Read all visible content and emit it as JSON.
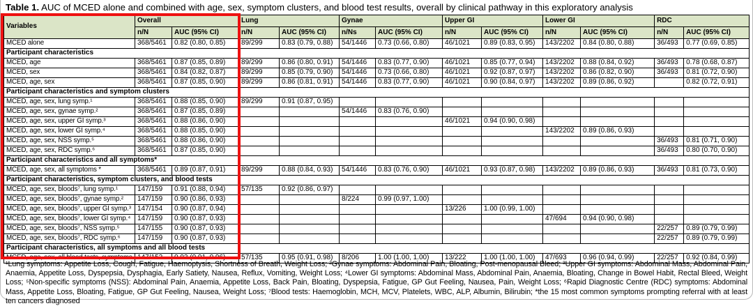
{
  "page": {
    "title_label": "Table 1.",
    "title_text": " AUC of MCED alone and combined with age, sex, symptom clusters, and blood test results, overall by clinical pathway in this exploratory analysis",
    "footnote": "¹Lung symptoms: Appetite Loss, Cough, Fatigue, Haemoptysis, Shortness of Breath, Weight Loss;   ²Gynae symptoms: Abdominal Pain, Bloating, Post-menopausal Bleed;   ³Upper GI symptoms: Abdominal Mass, Abdominal Pain, Anaemia, Appetite Loss, Dyspepsia, Dysphagia, Early Satiety, Nausea, Reflux, Vomiting, Weight Loss;   ⁴Lower GI symptoms: Abdominal Mass, Abdominal Pain, Anaemia, Bloating, Change in Bowel Habit, Rectal Bleed, Weight Loss;   ⁵Non-specific symptoms (NSS): Abdominal Pain, Anaemia, Appetite Loss, Back Pain, Bloating, Dyspepsia, Fatigue, GP Gut Feeling, Nausea, Pain, Weight Loss;   ⁶Rapid Diagnostic Centre (RDC) symptoms: Abdominal Mass, Appetite Loss, Bloating, Fatigue, GP Gut Feeling, Nausea, Weight Loss;   ⁷Blood tests: Haemoglobin, MCH, MCV, Platelets, WBC, ALP, Albumin, Bilirubin;   *the 15 most common symptoms prompting referral with at least ten cancers diagnosed"
  },
  "colors": {
    "header_bg": "#dbe5c7",
    "annotation_red": "#ee1111",
    "border": "#000000"
  },
  "table": {
    "variables_header": "Variables",
    "auc_header": "AUC (95% CI)",
    "groups": [
      {
        "label": "Overall",
        "n_header": "n/N"
      },
      {
        "label": "Lung",
        "n_header": "n/N"
      },
      {
        "label": "Gynae",
        "n_header": "n/Ns"
      },
      {
        "label": "Upper GI",
        "n_header": "n/N"
      },
      {
        "label": "Lower GI",
        "n_header": "n/N"
      },
      {
        "label": "RDC",
        "n_header": "n/N"
      }
    ],
    "rows": [
      {
        "type": "data",
        "label": "MCED alone",
        "cells": [
          "368/5461",
          "0.82 (0.80, 0.85)",
          "89/299",
          "0.83 (0.79, 0.88)",
          "54/1446",
          "0.73 (0.66, 0.80)",
          "46/1021",
          "0.89 (0.83, 0.95)",
          "143/2202",
          "0.84 (0.80, 0.88)",
          "36/493",
          "0.77 (0.69, 0.85)"
        ]
      },
      {
        "type": "section",
        "label": "Participant characteristics"
      },
      {
        "type": "data",
        "label": "MCED, age",
        "cells": [
          "368/5461",
          "0.87 (0.85, 0.89)",
          "89/299",
          "0.86 (0.80, 0.91)",
          "54/1446",
          "0.83 (0.77, 0.90)",
          "46/1021",
          "0.85 (0.77, 0.94)",
          "143/2202",
          "0.88 (0.84, 0.92)",
          "36/493",
          "0.78 (0.68, 0.87)"
        ]
      },
      {
        "type": "data",
        "label": "MCED, sex",
        "cells": [
          "368/5461",
          "0.84 (0.82, 0.87)",
          "89/299",
          "0.85 (0.79, 0.90)",
          "54/1446",
          "0.73 (0.66, 0.80)",
          "46/1021",
          "0.92 (0.87, 0.97)",
          "143/2202",
          "0.86 (0.82, 0.90)",
          "36/493",
          "0.81 (0.72, 0.90)"
        ]
      },
      {
        "type": "data",
        "label": "MCED, age, sex",
        "cells": [
          "368/5461",
          "0.87 (0.85, 0.90)",
          "89/299",
          "0.86 (0.81, 0.91)",
          "54/1446",
          "0.83 (0.77, 0.90)",
          "46/1021",
          "0.90 (0.84, 0.97)",
          "143/2202",
          "0.89 (0.86, 0.92)",
          "",
          "0.82 (0.72, 0.91)"
        ]
      },
      {
        "type": "section",
        "label": "Participant characteristics and symptom clusters"
      },
      {
        "type": "data",
        "label": "MCED, age, sex, lung symp.¹",
        "cells": [
          "368/5461",
          "0.88 (0.85, 0.90)",
          "89/299",
          "0.91 (0.87, 0.95)",
          "",
          "",
          "",
          "",
          "",
          "",
          "",
          ""
        ]
      },
      {
        "type": "data",
        "label": "MCED, age, sex, gynae symp.²",
        "cells": [
          "368/5461",
          "0.87 (0.85, 0.89)",
          "",
          "",
          "54/1446",
          "0.83 (0.76, 0.90)",
          "",
          "",
          "",
          "",
          "",
          ""
        ]
      },
      {
        "type": "data",
        "label": "MCED, age, sex, upper GI symp.³",
        "cells": [
          "368/5461",
          "0.88 (0.86, 0.90)",
          "",
          "",
          "",
          "",
          "46/1021",
          "0.94 (0.90, 0.98)",
          "",
          "",
          "",
          ""
        ]
      },
      {
        "type": "data",
        "label": "MCED, age, sex, lower GI symp.⁴",
        "cells": [
          "368/5461",
          "0.88 (0.85, 0.90)",
          "",
          "",
          "",
          "",
          "",
          "",
          "143/2202",
          "0.89 (0.86, 0.93)",
          "",
          ""
        ]
      },
      {
        "type": "data",
        "label": "MCED, age, sex, NSS symp.⁵",
        "cells": [
          "368/5461",
          "0.88 (0.86, 0.90)",
          "",
          "",
          "",
          "",
          "",
          "",
          "",
          "",
          "36/493",
          "0.81 (0.71, 0.90)"
        ]
      },
      {
        "type": "data",
        "label": "MCED, age, sex, RDC symp.⁶",
        "cells": [
          "368/5461",
          "0.87 (0.85, 0.90)",
          "",
          "",
          "",
          "",
          "",
          "",
          "",
          "",
          "36/493",
          "0.80 (0.70, 0.90)"
        ]
      },
      {
        "type": "section",
        "label": "Participant characteristics and all symptoms*"
      },
      {
        "type": "data",
        "label": "MCED, age, sex, all symptoms *",
        "cells": [
          "368/5461",
          "0.89 (0.87, 0.91)",
          "89/299",
          "0.88 (0.84, 0.93)",
          "54/1446",
          "0.83 (0.76, 0.90)",
          "46/1021",
          "0.93 (0.87, 0.98)",
          "143/2202",
          "0.89 (0.86, 0.93)",
          "36/493",
          "0.81 (0.73, 0.90)"
        ]
      },
      {
        "type": "section",
        "label": "Participant characteristics, symptom clusters, and blood tests"
      },
      {
        "type": "data",
        "label": "MCED, age, sex, bloods⁷, lung symp.¹",
        "cells": [
          "147/159",
          "0.91 (0.88, 0.94)",
          "57/135",
          "0.92 (0.86, 0.97)",
          "",
          "",
          "",
          "",
          "",
          "",
          "",
          ""
        ]
      },
      {
        "type": "data",
        "label": "MCED, age, sex, bloods⁷, gynae symp.²",
        "cells": [
          "147/159",
          "0.90 (0.86, 0.93)",
          "",
          "",
          "8/224",
          "0.99 (0.97, 1.00)",
          "",
          "",
          "",
          "",
          "",
          ""
        ]
      },
      {
        "type": "data",
        "label": "MCED, age, sex, bloods⁷, upper GI symp.³",
        "cells": [
          "147/154",
          "0.90 (0.87, 0.94)",
          "",
          "",
          "",
          "",
          "13/226",
          "1.00 (0.99, 1.00)",
          "",
          "",
          "",
          ""
        ]
      },
      {
        "type": "data",
        "label": "MCED, age, sex, bloods⁷, lower GI symp.⁴",
        "cells": [
          "147/159",
          "0.90 (0.87, 0.93)",
          "",
          "",
          "",
          "",
          "",
          "",
          "47/694",
          "0.94 (0.90, 0.98)",
          "",
          ""
        ]
      },
      {
        "type": "data",
        "label": "MCED, age, sex, bloods⁷, NSS symp.⁵",
        "cells": [
          "147/155",
          "0.90 (0.87, 0.93)",
          "",
          "",
          "",
          "",
          "",
          "",
          "",
          "",
          "22/257",
          "0.89 (0.79, 0.99)"
        ]
      },
      {
        "type": "data",
        "label": "MCED, age, sex, bloods⁷, RDC symp.⁶",
        "cells": [
          "147/159",
          "0.90 (0.87, 0.93)",
          "",
          "",
          "",
          "",
          "",
          "",
          "",
          "",
          "22/257",
          "0.89 (0.79, 0.99)"
        ]
      },
      {
        "type": "section",
        "label": "Participant characteristics, all symptoms and all blood tests"
      },
      {
        "type": "data",
        "label": "MCED, age, sex, all blood tests, symptoms.",
        "cells": [
          "147/152",
          "0.93 (0.91, 0.96)",
          "57/135",
          "0.95 (0.91, 0.98)",
          "8/206",
          "1.00 (1.00, 1.00)",
          "13/222",
          "1.00 (1.00, 1.00)",
          "47/693",
          "0.96 (0.94, 0.99)",
          "22/257",
          "0.92 (0.84, 0.99)"
        ]
      }
    ]
  }
}
